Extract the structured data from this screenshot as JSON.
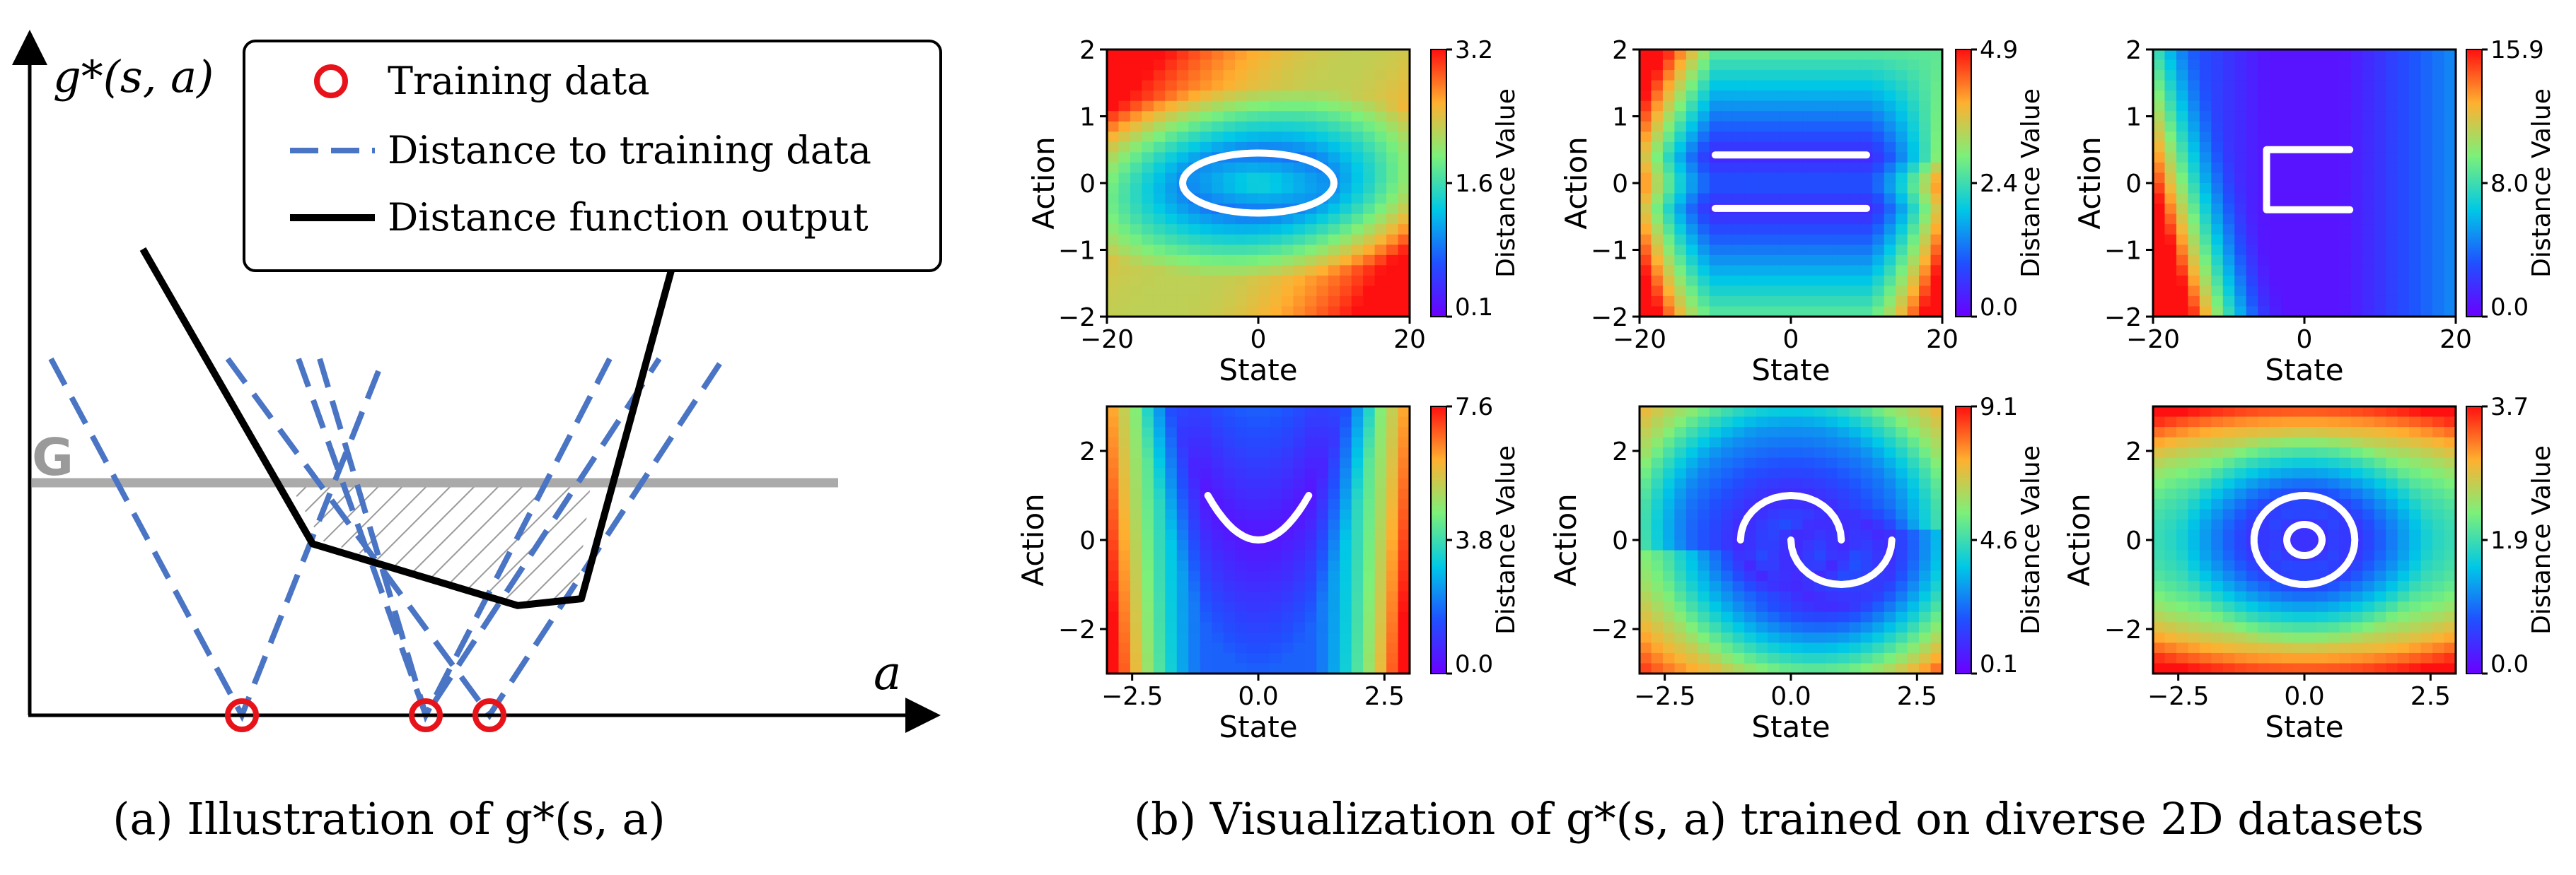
{
  "caption_a": "(a) Illustration of g*(s, a)",
  "caption_b": "(b) Visualization of g*(s, a) trained on diverse 2D datasets",
  "illustration": {
    "y_axis_label": "g*(s, a)",
    "x_axis_label": "a",
    "threshold_label": "G",
    "legend": {
      "training_data": "Training data",
      "distance_to_training": "Distance to training data",
      "distance_output": "Distance function output"
    }
  },
  "colors": {
    "training_marker": "#e8131a",
    "dashed": "#4a74c4",
    "output": "#000000",
    "threshold": "#aaaaaa"
  },
  "chart_data": [
    {
      "type": "line",
      "title": "Illustration of g*(s, a)",
      "xlabel": "a",
      "ylabel": "g*(s, a)",
      "threshold": {
        "name": "G",
        "value": 3.4
      },
      "training_points": [
        3.0,
        5.6,
        6.5
      ],
      "series": [
        {
          "name": "Distance to training data",
          "style": "dashed",
          "segments": [
            [
              [
                0.3,
                5.2
              ],
              [
                3.0,
                0.0
              ],
              [
                5.0,
                5.2
              ]
            ],
            [
              [
                3.8,
                5.2
              ],
              [
                5.6,
                0.0
              ],
              [
                8.9,
                5.2
              ]
            ],
            [
              [
                2.8,
                5.2
              ],
              [
                6.5,
                0.0
              ],
              [
                9.8,
                5.2
              ]
            ],
            [
              [
                4.1,
                5.2
              ],
              [
                5.6,
                0.0
              ],
              [
                8.2,
                5.2
              ]
            ]
          ]
        },
        {
          "name": "Distance function output",
          "style": "solid",
          "points": [
            [
              1.6,
              6.8
            ],
            [
              4.0,
              2.5
            ],
            [
              6.9,
              1.6
            ],
            [
              7.8,
              1.7
            ],
            [
              9.1,
              6.6
            ]
          ]
        }
      ]
    },
    {
      "type": "heatmap",
      "xlabel": "State",
      "ylabel": "Action",
      "colorbar_label": "Distance Value",
      "xlim": [
        -20,
        20
      ],
      "ylim": [
        -2,
        2
      ],
      "xticks": [
        "−20",
        "0",
        "20"
      ],
      "yticks": [
        "−2",
        "−1",
        "0",
        "1",
        "2"
      ],
      "colorbar_ticks": [
        "3.2",
        "1.6",
        "0.1"
      ],
      "colorbar_range": [
        0.1,
        3.2
      ],
      "dataset": "ellipse"
    },
    {
      "type": "heatmap",
      "xlabel": "State",
      "ylabel": "Action",
      "colorbar_label": "Distance Value",
      "xlim": [
        -20,
        20
      ],
      "ylim": [
        -2,
        2
      ],
      "xticks": [
        "−20",
        "0",
        "20"
      ],
      "yticks": [
        "−2",
        "−1",
        "0",
        "1",
        "2"
      ],
      "colorbar_ticks": [
        "4.9",
        "2.4",
        "0.0"
      ],
      "colorbar_range": [
        0.0,
        4.9
      ],
      "dataset": "two parallel lines"
    },
    {
      "type": "heatmap",
      "xlabel": "State",
      "ylabel": "Action",
      "colorbar_label": "Distance Value",
      "xlim": [
        -20,
        20
      ],
      "ylim": [
        -2,
        2
      ],
      "xticks": [
        "−20",
        "0",
        "20"
      ],
      "yticks": [
        "−2",
        "−1",
        "0",
        "1",
        "2"
      ],
      "colorbar_ticks": [
        "15.9",
        "8.0",
        "0.0"
      ],
      "colorbar_range": [
        0.0,
        15.9
      ],
      "dataset": "open square"
    },
    {
      "type": "heatmap",
      "xlabel": "State",
      "ylabel": "Action",
      "colorbar_label": "Distance Value",
      "xlim": [
        -3,
        3
      ],
      "ylim": [
        -3,
        3
      ],
      "xticks": [
        "−2.5",
        "0.0",
        "2.5"
      ],
      "yticks": [
        "−2",
        "0",
        "2"
      ],
      "colorbar_ticks": [
        "7.6",
        "3.8",
        "0.0"
      ],
      "colorbar_range": [
        0.0,
        7.6
      ],
      "dataset": "parabola"
    },
    {
      "type": "heatmap",
      "xlabel": "State",
      "ylabel": "Action",
      "colorbar_label": "Distance Value",
      "xlim": [
        -3,
        3
      ],
      "ylim": [
        -3,
        3
      ],
      "xticks": [
        "−2.5",
        "0.0",
        "2.5"
      ],
      "yticks": [
        "−2",
        "0",
        "2"
      ],
      "colorbar_ticks": [
        "9.1",
        "4.6",
        "0.1"
      ],
      "colorbar_range": [
        0.1,
        9.1
      ],
      "dataset": "two moons"
    },
    {
      "type": "heatmap",
      "xlabel": "State",
      "ylabel": "Action",
      "colorbar_label": "Distance Value",
      "xlim": [
        -3,
        3
      ],
      "ylim": [
        -3,
        3
      ],
      "xticks": [
        "−2.5",
        "0.0",
        "2.5"
      ],
      "yticks": [
        "−2",
        "0",
        "2"
      ],
      "colorbar_ticks": [
        "3.7",
        "1.9",
        "0.0"
      ],
      "colorbar_range": [
        0.0,
        3.7
      ],
      "dataset": "concentric circles"
    }
  ]
}
